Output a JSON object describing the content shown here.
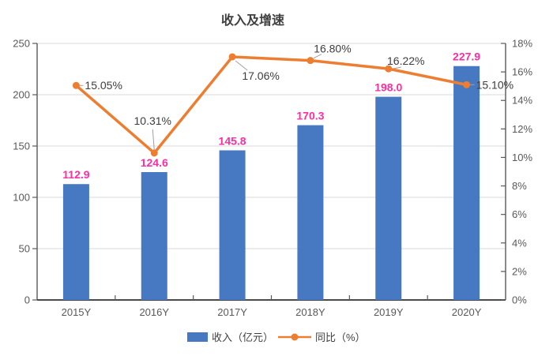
{
  "chart_data": {
    "type": "combo-bar-line",
    "title": "收入及增速",
    "categories": [
      "2015Y",
      "2016Y",
      "2017Y",
      "2018Y",
      "2019Y",
      "2020Y"
    ],
    "series": [
      {
        "name": "收入（亿元）",
        "type": "bar",
        "axis": "left",
        "color": "#4778C2",
        "values": [
          112.9,
          124.6,
          145.8,
          170.3,
          198.0,
          227.9
        ],
        "labels": [
          "112.9",
          "124.6",
          "145.8",
          "170.3",
          "198.0",
          "227.9"
        ],
        "label_color": "#FF2DA0"
      },
      {
        "name": "同比（%）",
        "type": "line",
        "axis": "right",
        "color": "#ED7D31",
        "values": [
          15.05,
          10.31,
          17.06,
          16.8,
          16.22,
          15.1
        ],
        "labels": [
          "15.05%",
          "10.31%",
          "17.06%",
          "16.80%",
          "16.22%",
          "15.10%"
        ],
        "label_color": "#3d3d3d"
      }
    ],
    "left_axis": {
      "min": 0,
      "max": 250,
      "step": 50,
      "ticks": [
        "0",
        "50",
        "100",
        "150",
        "200",
        "250"
      ]
    },
    "right_axis": {
      "min": 0,
      "max": 18,
      "step": 2,
      "ticks": [
        "0%",
        "2%",
        "4%",
        "6%",
        "8%",
        "10%",
        "12%",
        "14%",
        "16%",
        "18%"
      ]
    },
    "grid": true,
    "legend_position": "bottom",
    "colors": {
      "grid_line": "#d8d8d8",
      "axis_line": "#595959",
      "leader_line": "#a0a0a0",
      "tick_text": "#595959"
    }
  }
}
